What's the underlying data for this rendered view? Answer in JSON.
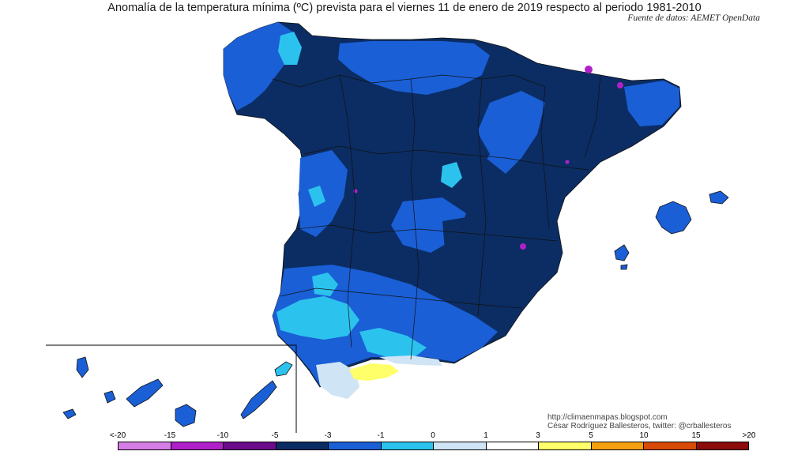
{
  "header": {
    "title": "Anomalía de la temperatura mínima (ºC) prevista para el viernes 11 de enero de 2019 respecto al periodo 1981-2010",
    "source": "Fuente de datos: AEMET OpenData"
  },
  "credits": {
    "blog": "http://climaenmapas.blogspot.com",
    "author": "César Rodríguez Ballesteros, twitter: @crballesteros"
  },
  "legend": {
    "ticks": [
      "<-20",
      "-15",
      "-10",
      "-5",
      "-3",
      "-1",
      "0",
      "1",
      "3",
      "5",
      "10",
      "15",
      ">20"
    ],
    "colors": [
      "#d57ee6",
      "#b020c8",
      "#6b0a8a",
      "#0b2d63",
      "#1a5fd6",
      "#2bc3ee",
      "#cfe4f5",
      "#ffffff",
      "#ffff6a",
      "#f4a10f",
      "#d84a06",
      "#8c0b0b",
      "#6b3a0b"
    ]
  },
  "colors": {
    "very_cold": "#0b2d63",
    "cold": "#1a5fd6",
    "cool": "#2bc3ee",
    "near_zero": "#cfe4f5",
    "warm": "#ffff6a",
    "extreme_cold": "#b020c8"
  }
}
